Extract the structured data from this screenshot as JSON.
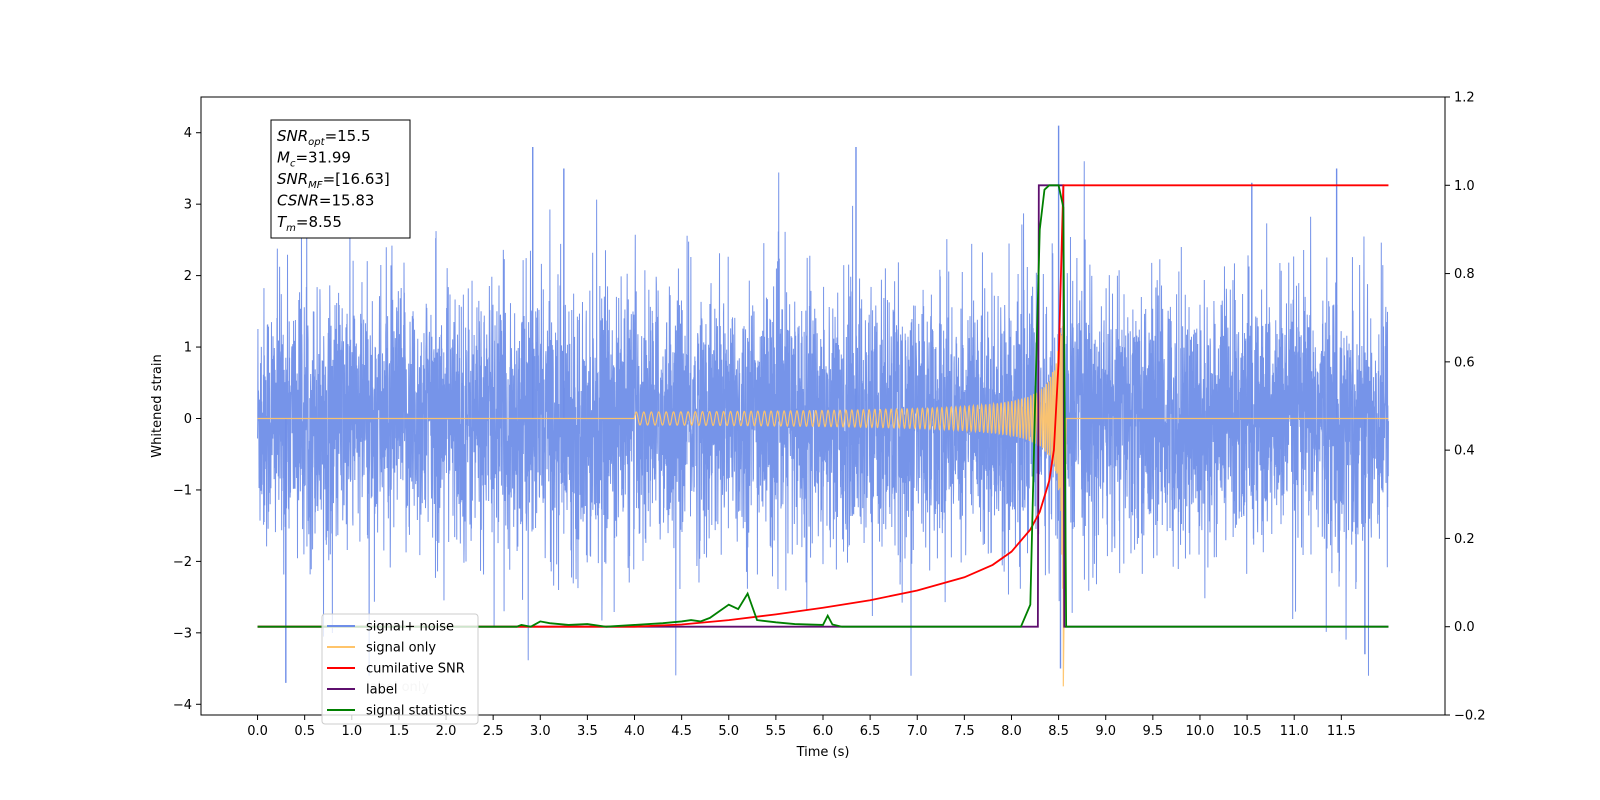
{
  "chart_data": {
    "type": "line",
    "xlabel": "Time (s)",
    "ylabel": "Whitened strain",
    "xlim": [
      -0.6,
      12.6
    ],
    "ylim": [
      -4.15,
      4.5
    ],
    "y2lim": [
      -0.2,
      1.2
    ],
    "xticks": [
      "0.0",
      "0.5",
      "1.0",
      "1.5",
      "2.0",
      "2.5",
      "3.0",
      "3.5",
      "4.0",
      "4.5",
      "5.0",
      "5.5",
      "6.0",
      "6.5",
      "7.0",
      "7.5",
      "8.0",
      "8.5",
      "9.0",
      "9.5",
      "10.0",
      "10.5",
      "11.0",
      "11.5"
    ],
    "yticks": [
      "−4",
      "−3",
      "−2",
      "−1",
      "0",
      "1",
      "2",
      "3",
      "4"
    ],
    "y2ticks": [
      "−0.2",
      "0.0",
      "0.2",
      "0.4",
      "0.6",
      "0.8",
      "1.0",
      "1.2"
    ],
    "annotation": {
      "lines": [
        {
          "base": "SNR",
          "sub": "opt",
          "value": "=15.5"
        },
        {
          "base": "M",
          "sub": "c",
          "value": "=31.99"
        },
        {
          "base": "SNR",
          "sub": "MF",
          "value": "=[16.63]"
        },
        {
          "base": "CSNR",
          "sub": "",
          "value": "=15.83"
        },
        {
          "base": "T",
          "sub": "m",
          "value": "=8.55"
        }
      ]
    },
    "legend": {
      "placement": "lower-left",
      "entries": [
        {
          "name": "signal+ noise",
          "color": "#6f8ee8"
        },
        {
          "name": "signal only",
          "color": "#ffc46a"
        },
        {
          "name": "cumilative SNR",
          "color": "#ff0000"
        },
        {
          "name": "label",
          "color": "#5e0f6e"
        },
        {
          "name": "signal statistics",
          "color": "#008000"
        }
      ],
      "overlap_text": "label only"
    },
    "series": [
      {
        "name": "signal+ noise",
        "axis": "left",
        "color": "#6f8ee8",
        "x_range": [
          0.0,
          12.0
        ],
        "noise_std": 0.9,
        "peaks": [
          [
            0.3,
            -3.7
          ],
          [
            2.92,
            3.8
          ],
          [
            3.25,
            3.5
          ],
          [
            6.35,
            3.8
          ],
          [
            8.5,
            4.1
          ],
          [
            8.52,
            -3.5
          ],
          [
            10.55,
            3.3
          ],
          [
            11.45,
            3.5
          ],
          [
            11.75,
            -3.3
          ]
        ]
      },
      {
        "name": "signal only",
        "axis": "left",
        "color": "#ffc46a",
        "chirp_start": 4.0,
        "merger_time": 8.55,
        "peak_amplitude": 3.5,
        "min_amplitude": -3.75
      },
      {
        "name": "cumilative SNR",
        "axis": "right",
        "color": "#ff0000",
        "x": [
          0.0,
          1.0,
          2.0,
          3.0,
          4.0,
          4.5,
          5.0,
          5.5,
          6.0,
          6.5,
          7.0,
          7.5,
          7.8,
          8.0,
          8.2,
          8.3,
          8.4,
          8.45,
          8.5,
          8.55,
          12.0
        ],
        "y": [
          0.0,
          0.0,
          0.0,
          0.0,
          0.0,
          0.005,
          0.015,
          0.028,
          0.043,
          0.06,
          0.082,
          0.112,
          0.14,
          0.17,
          0.22,
          0.26,
          0.33,
          0.4,
          0.6,
          1.0,
          1.0
        ]
      },
      {
        "name": "label",
        "axis": "right",
        "color": "#5e0f6e",
        "x": [
          0.0,
          8.28,
          8.29,
          8.55,
          8.56,
          12.0
        ],
        "y": [
          0.0,
          0.0,
          1.0,
          1.0,
          0.0,
          0.0
        ]
      },
      {
        "name": "signal statistics",
        "axis": "right",
        "color": "#008000",
        "x": [
          0.0,
          2.75,
          2.8,
          2.9,
          3.0,
          3.1,
          3.3,
          3.5,
          3.7,
          4.0,
          4.3,
          4.5,
          4.6,
          4.7,
          4.8,
          4.9,
          5.0,
          5.1,
          5.2,
          5.3,
          5.5,
          5.7,
          6.0,
          6.05,
          6.1,
          6.2,
          6.5,
          8.1,
          8.2,
          8.25,
          8.3,
          8.35,
          8.4,
          8.5,
          8.55,
          8.58,
          12.0
        ],
        "y": [
          0.0,
          0.0,
          0.004,
          0.0,
          0.012,
          0.008,
          0.004,
          0.006,
          0.0,
          0.004,
          0.008,
          0.012,
          0.015,
          0.012,
          0.02,
          0.035,
          0.05,
          0.04,
          0.075,
          0.015,
          0.01,
          0.006,
          0.004,
          0.025,
          0.005,
          0.0,
          0.0,
          0.0,
          0.05,
          0.5,
          0.9,
          0.99,
          1.0,
          1.0,
          0.95,
          0.0,
          0.0
        ]
      }
    ]
  }
}
